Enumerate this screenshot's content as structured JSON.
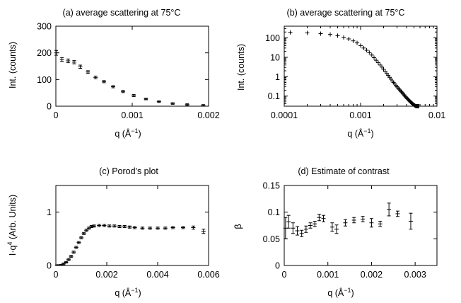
{
  "chart_data": [
    {
      "id": "a",
      "type": "scatter",
      "title": "(a) average scattering at 75°C",
      "xlabel": "q (Å",
      "xlabel_sup": "−1",
      "xlabel_tail": ")",
      "ylabel": "Int. (counts)",
      "xscale": "linear",
      "yscale": "linear",
      "xlim": [
        0,
        0.002
      ],
      "ylim": [
        0,
        300
      ],
      "xticks": [
        0,
        0.001,
        0.002
      ],
      "xtick_labels": [
        "0",
        "0.001",
        "0.002"
      ],
      "yticks": [
        0,
        100,
        200,
        300
      ],
      "ytick_labels": [
        "0",
        "100",
        "200",
        "300"
      ],
      "grid": false,
      "legend": "none",
      "errorbars": true,
      "series": [
        {
          "x": [
            5e-06,
            8e-05,
            0.00016,
            0.00024,
            0.00032,
            0.00042,
            0.00052,
            0.00063,
            0.00075,
            0.00088,
            0.00102,
            0.00118,
            0.00135,
            0.00153,
            0.00172,
            0.00193
          ],
          "y": [
            200,
            175,
            170,
            165,
            148,
            128,
            108,
            92,
            73,
            55,
            40,
            27,
            17,
            10,
            6,
            3
          ],
          "err": [
            9,
            7,
            7,
            6,
            6,
            5,
            5,
            4,
            4,
            4,
            4,
            3,
            3,
            3,
            3,
            3
          ]
        }
      ]
    },
    {
      "id": "b",
      "type": "scatter",
      "title": "(b) average scattering at 75°C",
      "xlabel": "q (Å",
      "xlabel_sup": "−1",
      "xlabel_tail": ")",
      "ylabel": "Int. (counts)",
      "xscale": "log",
      "yscale": "log",
      "xlim": [
        0.0001,
        0.01
      ],
      "ylim": [
        0.03,
        400
      ],
      "xticks": [
        0.0001,
        0.001,
        0.01
      ],
      "xtick_labels": [
        "0.0001",
        "0.001",
        "0.01"
      ],
      "yticks": [
        0.1,
        1,
        10,
        100
      ],
      "ytick_labels": [
        "0.1",
        "1",
        "10",
        "100"
      ],
      "grid": false,
      "legend": "none",
      "errorbars": true,
      "series": [
        {
          "x": [
            0.00012,
            0.0002,
            0.0003,
            0.0004,
            0.0005,
            0.0006,
            0.0007,
            0.0008,
            0.0009,
            0.001,
            0.0011,
            0.0012,
            0.0013,
            0.0014,
            0.0015,
            0.0016,
            0.0017,
            0.0018,
            0.0019,
            0.002,
            0.0021,
            0.0022,
            0.0023,
            0.0024,
            0.0025,
            0.0026,
            0.0027,
            0.0028,
            0.0029,
            0.003,
            0.0031,
            0.0032,
            0.0033,
            0.0034,
            0.0035,
            0.0036,
            0.0037,
            0.0038,
            0.0039,
            0.004,
            0.0041,
            0.0042,
            0.0043,
            0.0044,
            0.0045,
            0.0046,
            0.0047,
            0.0048,
            0.0049,
            0.005,
            0.0051,
            0.0052,
            0.0053,
            0.0054,
            0.0055,
            0.0056,
            0.0057,
            0.0058
          ],
          "y": [
            190,
            180,
            165,
            150,
            130,
            105,
            88,
            70,
            55,
            40,
            30,
            23,
            17.5,
            13,
            9.5,
            7,
            5.3,
            4,
            3.1,
            2.4,
            1.85,
            1.45,
            1.15,
            0.92,
            0.74,
            0.6,
            0.5,
            0.42,
            0.35,
            0.3,
            0.26,
            0.225,
            0.195,
            0.17,
            0.15,
            0.13,
            0.115,
            0.1,
            0.09,
            0.081,
            0.073,
            0.066,
            0.06,
            0.055,
            0.05,
            0.046,
            0.043,
            0.04,
            0.037,
            0.035,
            0.033,
            0.031,
            0.03,
            0.03,
            0.03,
            0.03,
            0.03,
            0.03
          ]
        }
      ]
    },
    {
      "id": "c",
      "type": "scatter",
      "title": "(c) Porod's plot",
      "xlabel": "q (Å",
      "xlabel_sup": "−1",
      "xlabel_tail": ")",
      "ylabel": "I·q",
      "ylabel_sup": "4",
      "ylabel_tail": " (Arb. Units)",
      "xscale": "linear",
      "yscale": "linear",
      "xlim": [
        0,
        0.006
      ],
      "ylim": [
        0,
        1.5
      ],
      "xticks": [
        0,
        0.002,
        0.004,
        0.006
      ],
      "xtick_labels": [
        "0",
        "0.002",
        "0.004",
        "0.006"
      ],
      "yticks": [
        0,
        1
      ],
      "ytick_labels": [
        "0",
        "1"
      ],
      "grid": false,
      "legend": "none",
      "errorbars": true,
      "series": [
        {
          "x": [
            5e-05,
            0.0001,
            0.0002,
            0.0003,
            0.0004,
            0.0005,
            0.0006,
            0.0007,
            0.0008,
            0.0009,
            0.001,
            0.0011,
            0.0012,
            0.0013,
            0.0014,
            0.0015,
            0.0017,
            0.0019,
            0.0021,
            0.0023,
            0.0025,
            0.0027,
            0.0029,
            0.0031,
            0.0034,
            0.0037,
            0.004,
            0.0043,
            0.0046,
            0.005,
            0.0054,
            0.0058
          ],
          "y": [
            0.002,
            0.005,
            0.01,
            0.03,
            0.06,
            0.11,
            0.17,
            0.25,
            0.34,
            0.43,
            0.52,
            0.6,
            0.66,
            0.7,
            0.73,
            0.74,
            0.75,
            0.75,
            0.74,
            0.74,
            0.73,
            0.73,
            0.72,
            0.71,
            0.7,
            0.7,
            0.7,
            0.7,
            0.71,
            0.71,
            0.71,
            0.64
          ],
          "err": [
            0.01,
            0.01,
            0.01,
            0.015,
            0.015,
            0.02,
            0.02,
            0.02,
            0.02,
            0.02,
            0.02,
            0.02,
            0.02,
            0.02,
            0.02,
            0.02,
            0.02,
            0.02,
            0.02,
            0.02,
            0.02,
            0.02,
            0.02,
            0.02,
            0.02,
            0.02,
            0.02,
            0.02,
            0.02,
            0.02,
            0.03,
            0.04
          ]
        }
      ]
    },
    {
      "id": "d",
      "type": "scatter",
      "title": "(d) Estimate of contrast",
      "xlabel": "q (Å",
      "xlabel_sup": "−1",
      "xlabel_tail": ")",
      "ylabel": "β",
      "xscale": "linear",
      "yscale": "linear",
      "xlim": [
        0,
        0.0035
      ],
      "ylim": [
        0,
        0.15
      ],
      "xticks": [
        0,
        0.001,
        0.002,
        0.003
      ],
      "xtick_labels": [
        "0",
        "0.001",
        "0.002",
        "0.003"
      ],
      "yticks": [
        0,
        0.05,
        0.1,
        0.15
      ],
      "ytick_labels": [
        "0",
        "0.05",
        "0.1",
        "0.15"
      ],
      "grid": false,
      "legend": "none",
      "errorbars": true,
      "series": [
        {
          "x": [
            3e-05,
            0.0001,
            0.0002,
            0.0003,
            0.0004,
            0.0005,
            0.0006,
            0.0007,
            0.0008,
            0.0009,
            0.0011,
            0.0012,
            0.0014,
            0.0016,
            0.0018,
            0.002,
            0.0022,
            0.0024,
            0.0026,
            0.0029
          ],
          "y": [
            0.07,
            0.082,
            0.07,
            0.065,
            0.06,
            0.068,
            0.075,
            0.078,
            0.09,
            0.088,
            0.072,
            0.068,
            0.08,
            0.085,
            0.087,
            0.08,
            0.078,
            0.105,
            0.097,
            0.083
          ],
          "err": [
            0.02,
            0.012,
            0.01,
            0.008,
            0.006,
            0.006,
            0.005,
            0.005,
            0.006,
            0.006,
            0.008,
            0.008,
            0.006,
            0.005,
            0.005,
            0.008,
            0.005,
            0.012,
            0.005,
            0.015
          ]
        }
      ]
    }
  ]
}
